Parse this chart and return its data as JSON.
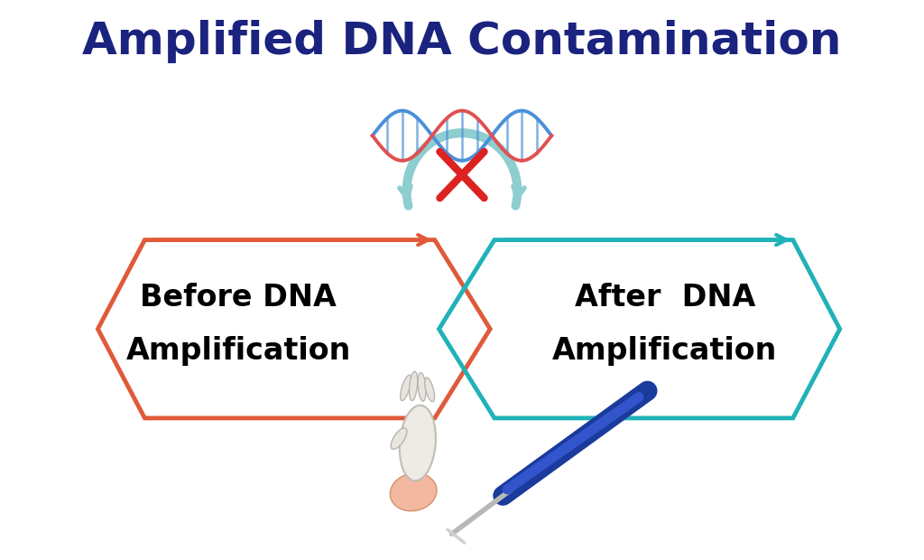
{
  "title": "Amplified DNA Contamination",
  "title_color": "#1a237e",
  "title_fontsize": 36,
  "title_fontweight": "bold",
  "bg_color": "#ffffff",
  "before_label_line1": "Before DNA",
  "before_label_line2": "Amplification",
  "after_label_line1": "After  DNA",
  "after_label_line2": "Amplification",
  "label_fontsize": 24,
  "label_fontweight": "bold",
  "before_color": "#e05a3a",
  "after_color": "#20b2b8",
  "arc_color": "#8ecdd0",
  "cross_color": "#dd2222",
  "dna_blue": "#4a90d9",
  "dna_red": "#e05050",
  "dna_rung": "#4a90d9",
  "figsize": [
    10.24,
    6.2
  ],
  "dpi": 100
}
